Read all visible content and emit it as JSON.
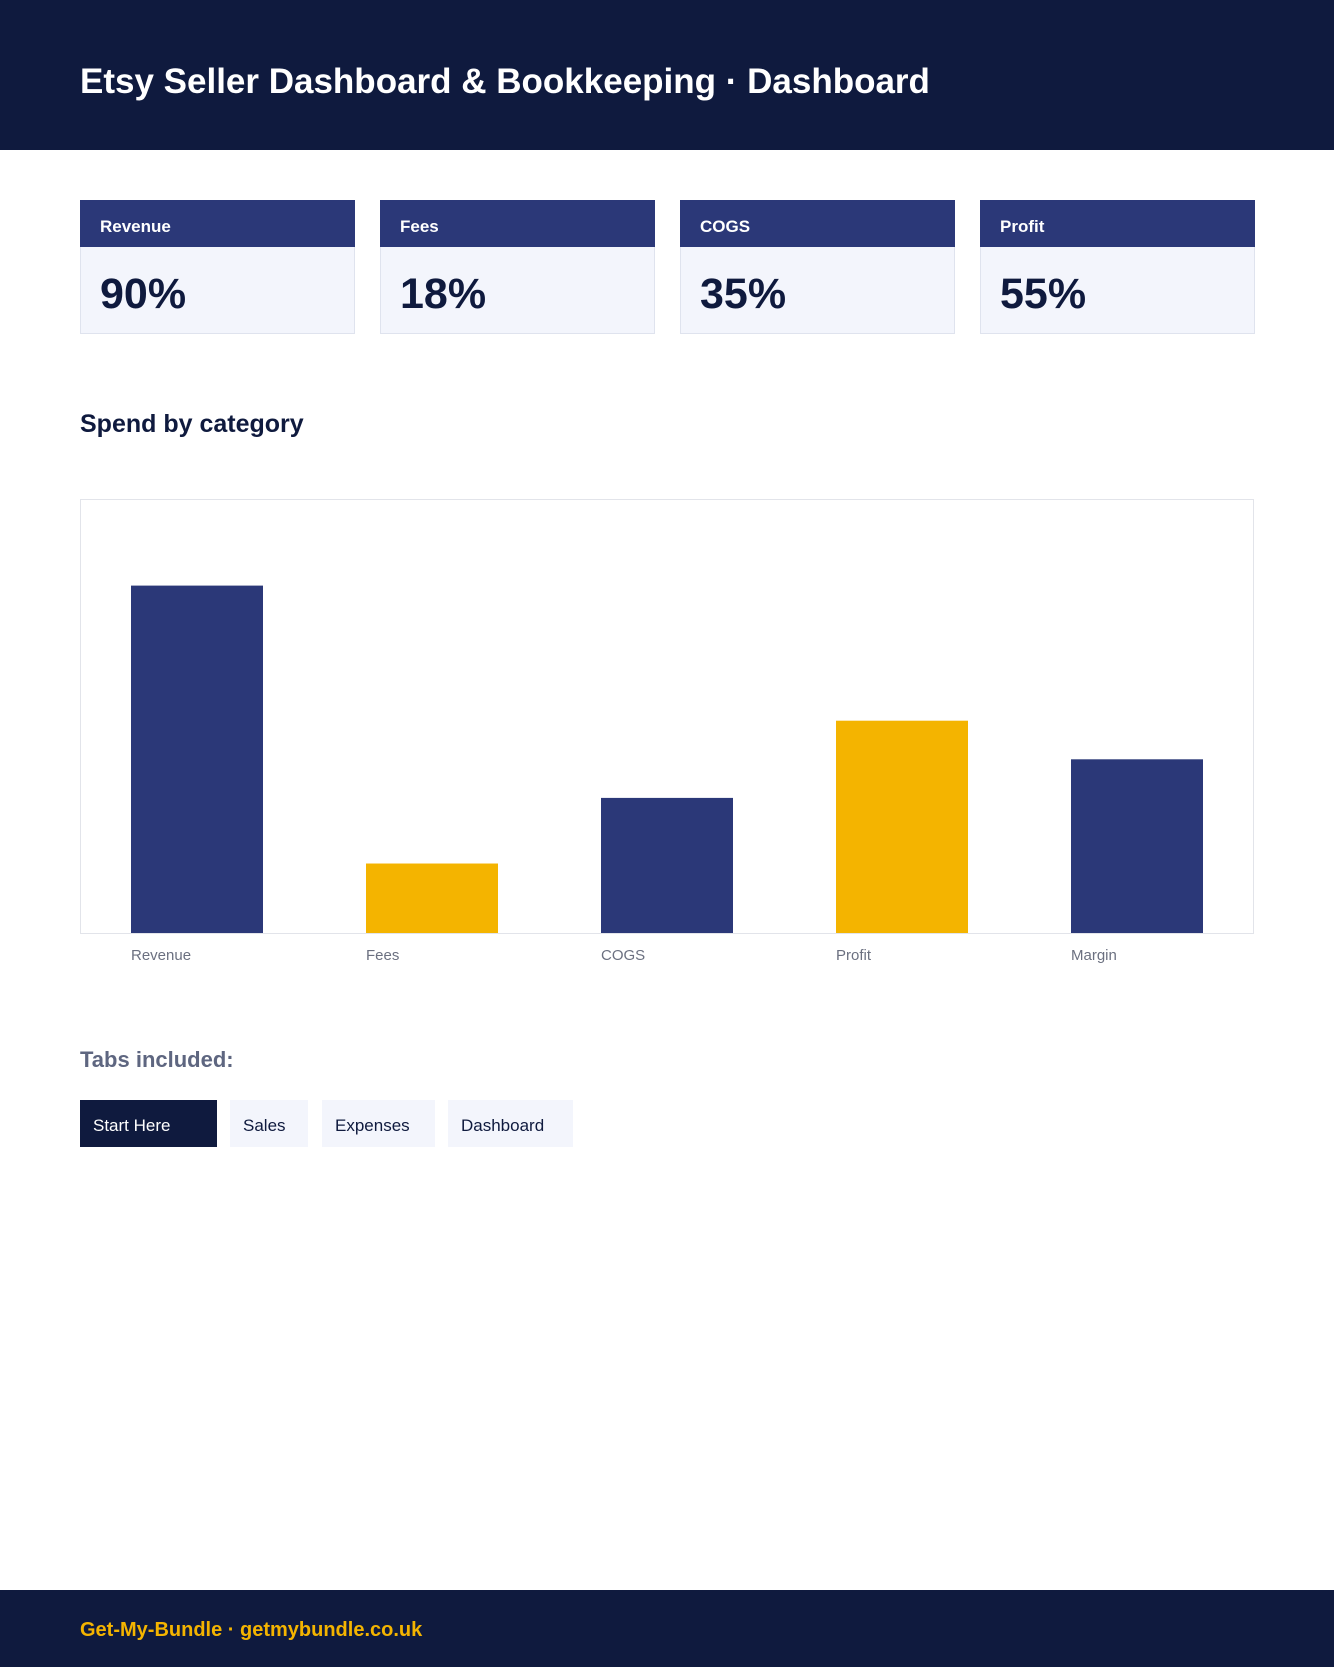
{
  "header": {
    "title": "Etsy Seller Dashboard & Bookkeeping · Dashboard"
  },
  "kpis": [
    {
      "label": "Revenue",
      "value": "90%"
    },
    {
      "label": "Fees",
      "value": "18%"
    },
    {
      "label": "COGS",
      "value": "35%"
    },
    {
      "label": "Profit",
      "value": "55%"
    }
  ],
  "section": {
    "title": "Spend by category"
  },
  "chart_data": {
    "type": "bar",
    "categories": [
      "Revenue",
      "Fees",
      "COGS",
      "Profit",
      "Margin"
    ],
    "values": [
      90,
      18,
      35,
      55,
      45
    ],
    "ylim": [
      0,
      100
    ],
    "grid": false,
    "colors": [
      "#2b3878",
      "#f4b400",
      "#2b3878",
      "#f4b400",
      "#2b3878"
    ]
  },
  "tabs": {
    "title": "Tabs included:",
    "items": [
      "Start Here",
      "Sales",
      "Expenses",
      "Dashboard"
    ],
    "active_index": 0
  },
  "footer": {
    "text": "Get-My-Bundle · getmybundle.co.uk"
  },
  "colors": {
    "navy": "#0f1a3e",
    "blue": "#2b3878",
    "gold": "#f4b400"
  }
}
